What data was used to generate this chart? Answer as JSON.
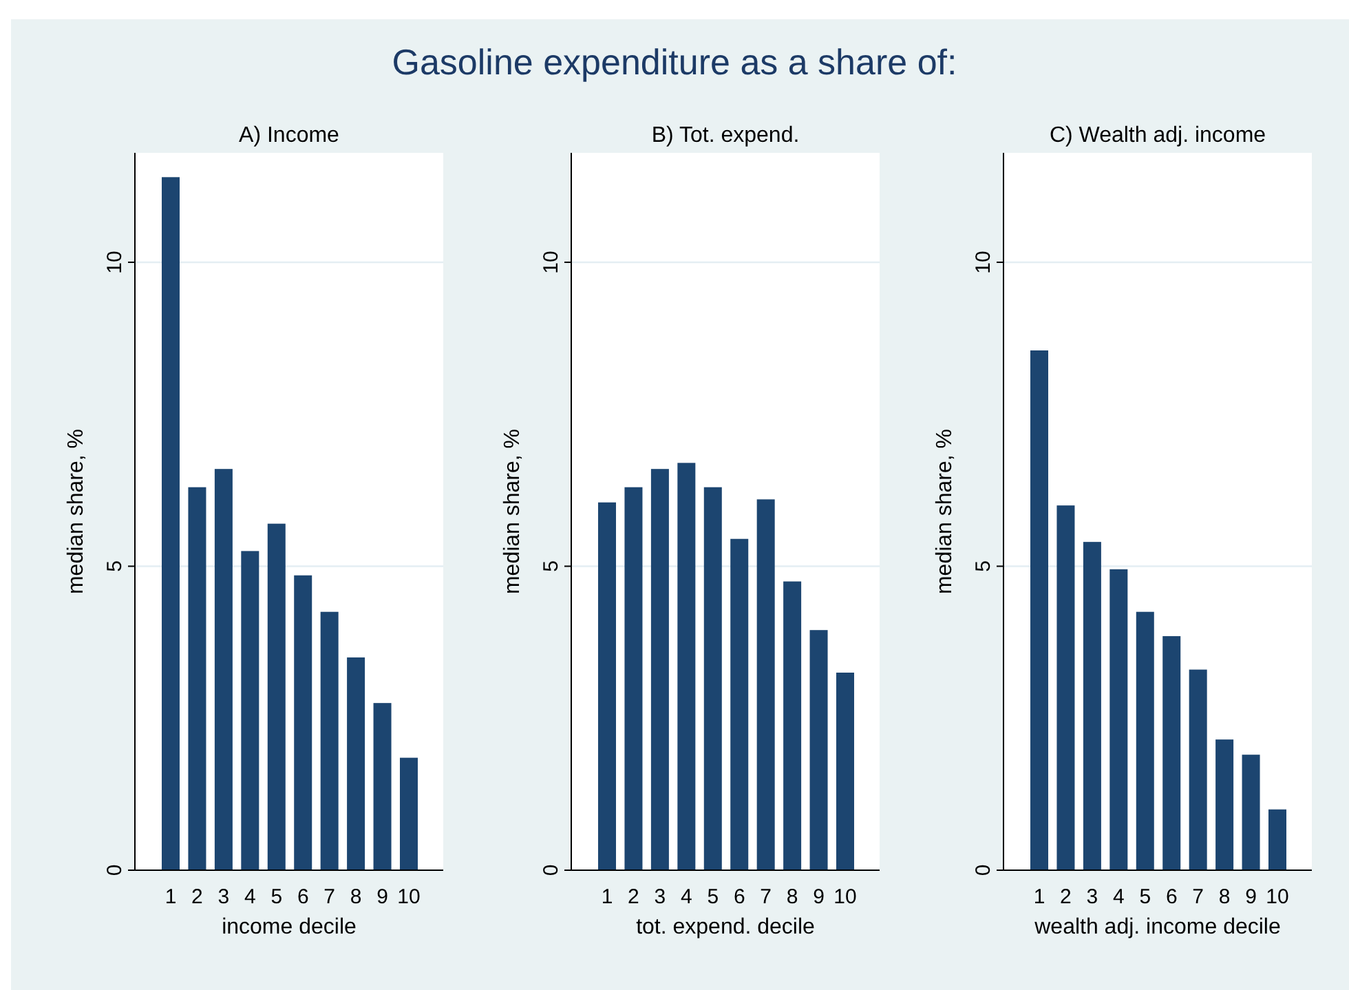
{
  "chart_data": [
    {
      "type": "bar",
      "subtitle": "A) Income",
      "xlabel": "income decile",
      "ylabel": "median share, %",
      "categories": [
        "1",
        "2",
        "3",
        "4",
        "5",
        "6",
        "7",
        "8",
        "9",
        "10"
      ],
      "values": [
        11.4,
        6.3,
        6.6,
        5.25,
        5.7,
        4.85,
        4.25,
        3.5,
        2.75,
        1.85
      ],
      "color": "#1c4570",
      "ylim": [
        0,
        11.8
      ],
      "yticks": [
        0,
        5,
        10
      ],
      "grid": "y"
    },
    {
      "type": "bar",
      "title": "Gasoline expenditure as a share of:",
      "subtitle": "B) Tot. expend.",
      "xlabel": "tot. expend. decile",
      "ylabel": "median share, %",
      "categories": [
        "1",
        "2",
        "3",
        "4",
        "5",
        "6",
        "7",
        "8",
        "9",
        "10"
      ],
      "values": [
        6.05,
        6.3,
        6.6,
        6.7,
        6.3,
        5.45,
        6.1,
        4.75,
        3.95,
        3.25
      ],
      "color": "#1c4570",
      "ylim": [
        0,
        11.8
      ],
      "yticks": [
        0,
        5,
        10
      ],
      "grid": "y"
    },
    {
      "type": "bar",
      "subtitle": "C) Wealth adj. income",
      "xlabel": "wealth adj. income decile",
      "ylabel": "median share, %",
      "categories": [
        "1",
        "2",
        "3",
        "4",
        "5",
        "6",
        "7",
        "8",
        "9",
        "10"
      ],
      "values": [
        8.55,
        6.0,
        5.4,
        4.95,
        4.25,
        3.85,
        3.3,
        2.15,
        1.9,
        1.0
      ],
      "color": "#1c4570",
      "ylim": [
        0,
        11.8
      ],
      "yticks": [
        0,
        5,
        10
      ],
      "grid": "y"
    }
  ]
}
